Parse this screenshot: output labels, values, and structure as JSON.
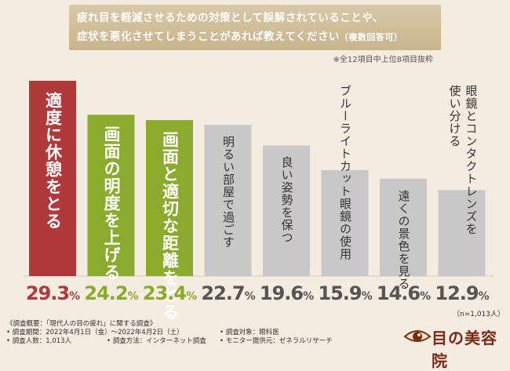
{
  "header": {
    "question_line1": "疲れ目を軽減させるための対策として誤解されていることや、",
    "question_line2": "症状を悪化させてしまうことがあれば教えてください",
    "question_suffix": "（複数回答可）",
    "note": "※全12項目中上位8項目抜粋"
  },
  "chart_data": {
    "type": "bar",
    "categories": [
      "適度に休憩をとる",
      "画面の明度を上げる",
      "画面と適切な距離をとる",
      "明るい部屋で過ごす",
      "良い姿勢を保つ",
      "ブルーライトカット眼鏡の使用",
      "遠くの景色を見る",
      "眼鏡とコンタクトレンズを使い分ける"
    ],
    "label_lines": [
      [
        "適度に休憩をとる"
      ],
      [
        "画面の明度を上げる"
      ],
      [
        "画面と適切な距離をとる"
      ],
      [
        "明るい部屋で過ごす"
      ],
      [
        "良い姿勢を保つ"
      ],
      [
        "ブルーライトカット眼鏡の使用"
      ],
      [
        "遠くの景色を見る"
      ],
      [
        "眼鏡とコンタクトレンズを",
        "使い分ける"
      ]
    ],
    "values": [
      29.3,
      24.2,
      23.4,
      22.7,
      19.6,
      15.9,
      14.6,
      12.9
    ],
    "value_labels": [
      "29.3",
      "24.2",
      "23.4",
      "22.7",
      "19.6",
      "15.9",
      "14.6",
      "12.9"
    ],
    "unit": "%",
    "colors": [
      "#b03a3a",
      "#8aab2e",
      "#8aab2e",
      "#c8c8c8",
      "#c8c8c8",
      "#c8c8c8",
      "#c8c8c8",
      "#c8c8c8"
    ],
    "label_colors": [
      "#ffffff",
      "#ffffff",
      "#ffffff",
      "#333333",
      "#333333",
      "#333333",
      "#333333",
      "#333333"
    ],
    "pct_colors": [
      "#b03a3a",
      "#8aab2e",
      "#8aab2e",
      "#555555",
      "#555555",
      "#555555",
      "#555555",
      "#555555"
    ],
    "ylim": [
      0,
      32
    ],
    "title": "",
    "xlabel": "",
    "ylabel": ""
  },
  "respondents": "（n=1,013人）",
  "footer": {
    "title": "《調査概要：「現代人の目の疲れ」に関する調査》",
    "period": "• 調査期間：2022年4月1日（金）～2022年4月2日（土）",
    "count": "• 調査人数：1,013人",
    "method": "• 調査方法：インターネット調査",
    "target": "• 調査対象：眼科医",
    "provider": "• モニター提供元：ゼネラルリサーチ"
  },
  "logo": {
    "text": "目の美容院"
  }
}
